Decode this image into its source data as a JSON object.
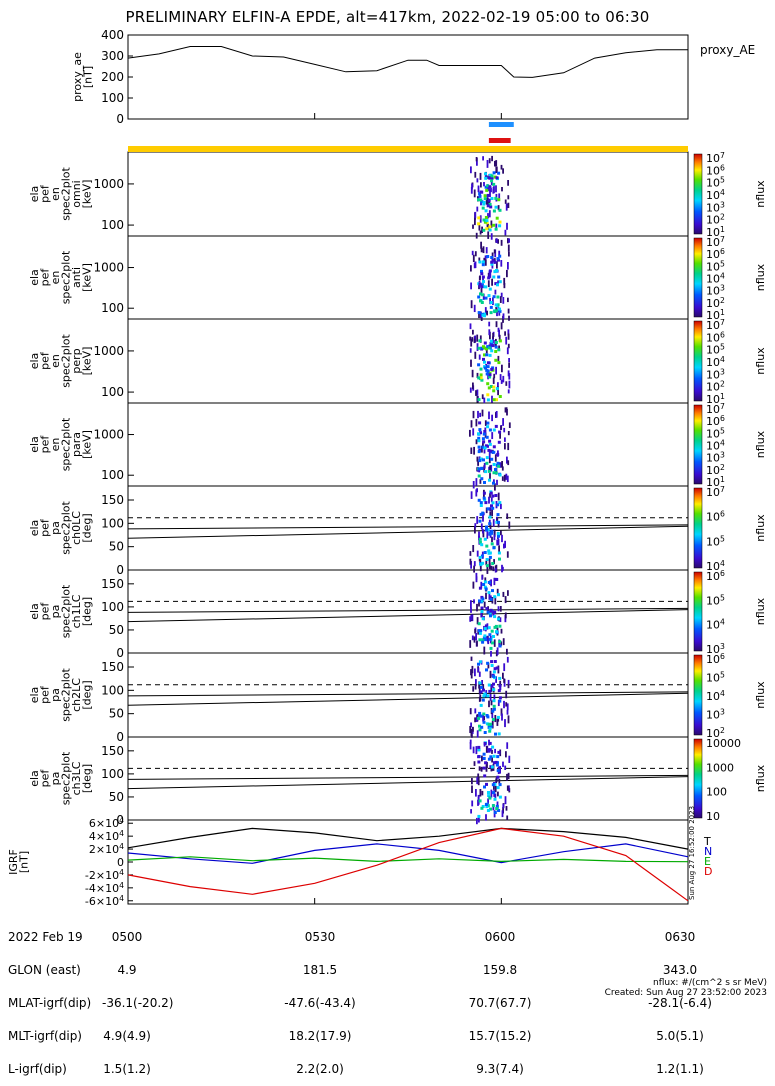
{
  "title": "PRELIMINARY ELFIN-A EPDE, alt=417km, 2022-02-19 05:00 to 06:30",
  "chart_data": [
    {
      "type": "line",
      "panel": "proxy_ae",
      "ylabel": [
        "proxy_ae",
        "[nT]"
      ],
      "yticks": [
        "400",
        "300",
        "200",
        "100",
        "0"
      ],
      "ylim": [
        0,
        400
      ],
      "legend": "proxy_AE",
      "x_minutes_after_0500": [
        0,
        5,
        10,
        15,
        20,
        25,
        30,
        35,
        40,
        45,
        48,
        50,
        55,
        60,
        62,
        65,
        70,
        75,
        80,
        85,
        90
      ],
      "values": [
        290,
        310,
        345,
        345,
        300,
        295,
        260,
        225,
        230,
        280,
        280,
        255,
        255,
        255,
        200,
        198,
        220,
        290,
        315,
        330,
        330
      ],
      "color": "#000000"
    },
    {
      "type": "heatmap",
      "panel": "omni",
      "ylabel": [
        "ela",
        "pef",
        "en",
        "spec2plot",
        "omni",
        "[keV]"
      ],
      "yticks": [
        "1000",
        "100"
      ],
      "scale": "log",
      "colorbar_label": "nflux",
      "colorbar_ticks": [
        "10^7",
        "10^6",
        "10^5",
        "10^4",
        "10^3",
        "10^2",
        "10^1"
      ]
    },
    {
      "type": "heatmap",
      "panel": "anti",
      "ylabel": [
        "ela",
        "pef",
        "en",
        "spec2plot",
        "anti",
        "[keV]"
      ],
      "yticks": [
        "1000",
        "100"
      ],
      "scale": "log",
      "colorbar_label": "nflux",
      "colorbar_ticks": [
        "10^7",
        "10^6",
        "10^5",
        "10^4",
        "10^3",
        "10^2",
        "10^1"
      ]
    },
    {
      "type": "heatmap",
      "panel": "perp",
      "ylabel": [
        "ela",
        "pef",
        "en",
        "spec2plot",
        "perp",
        "[keV]"
      ],
      "yticks": [
        "1000",
        "100"
      ],
      "scale": "log",
      "colorbar_label": "nflux",
      "colorbar_ticks": [
        "10^7",
        "10^6",
        "10^5",
        "10^4",
        "10^3",
        "10^2",
        "10^1"
      ]
    },
    {
      "type": "heatmap",
      "panel": "para",
      "ylabel": [
        "ela",
        "pef",
        "en",
        "spec2plot",
        "para",
        "[keV]"
      ],
      "yticks": [
        "1000",
        "100"
      ],
      "scale": "log",
      "colorbar_label": "nflux",
      "colorbar_ticks": [
        "10^7",
        "10^6",
        "10^5",
        "10^4",
        "10^3",
        "10^2",
        "10^1"
      ]
    },
    {
      "type": "heatmap",
      "panel": "ch0LC",
      "ylabel": [
        "ela",
        "pef",
        "pa",
        "spec2plot",
        "ch0LC",
        "[deg]"
      ],
      "yticks": [
        "150",
        "100",
        "50",
        "0"
      ],
      "ylim": [
        0,
        180
      ],
      "colorbar_label": "nflux",
      "colorbar_ticks": [
        "10^7",
        "10^6",
        "10^5",
        "10^4"
      ]
    },
    {
      "type": "heatmap",
      "panel": "ch1LC",
      "ylabel": [
        "ela",
        "pef",
        "pa",
        "spec2plot",
        "ch1LC",
        "[deg]"
      ],
      "yticks": [
        "150",
        "100",
        "50",
        "0"
      ],
      "ylim": [
        0,
        180
      ],
      "colorbar_label": "nflux",
      "colorbar_ticks": [
        "10^6",
        "10^5",
        "10^4",
        "10^3"
      ]
    },
    {
      "type": "heatmap",
      "panel": "ch2LC",
      "ylabel": [
        "ela",
        "pef",
        "pa",
        "spec2plot",
        "ch2LC",
        "[deg]"
      ],
      "yticks": [
        "150",
        "100",
        "50",
        "0"
      ],
      "ylim": [
        0,
        180
      ],
      "colorbar_label": "nflux",
      "colorbar_ticks": [
        "10^6",
        "10^5",
        "10^4",
        "10^3",
        "10^2"
      ]
    },
    {
      "type": "heatmap",
      "panel": "ch3LC",
      "ylabel": [
        "ela",
        "pef",
        "pa",
        "spec2plot",
        "ch3LC",
        "[deg]"
      ],
      "yticks": [
        "150",
        "100",
        "50",
        "0"
      ],
      "ylim": [
        0,
        180
      ],
      "colorbar_label": "nflux",
      "colorbar_ticks": [
        "10000",
        "1000",
        "100",
        "10"
      ]
    },
    {
      "type": "line",
      "panel": "IGRF",
      "ylabel": [
        "IGRF",
        "[nT]"
      ],
      "yticks": [
        "6×10^4",
        "4×10^4",
        "2×10^4",
        "0",
        "-2×10^4",
        "-4×10^4",
        "-6×10^4"
      ],
      "ylim": [
        -65000,
        65000
      ],
      "legend": [
        "T",
        "N",
        "E",
        "D"
      ],
      "x_minutes_after_0500": [
        0,
        10,
        20,
        30,
        40,
        50,
        60,
        70,
        80,
        90
      ],
      "series": [
        {
          "name": "T",
          "color": "#000000",
          "values": [
            22000,
            38000,
            52000,
            45000,
            33000,
            40000,
            52000,
            47000,
            38000,
            20000
          ]
        },
        {
          "name": "N",
          "color": "#0000cc",
          "values": [
            14000,
            5000,
            -2000,
            18000,
            28000,
            18000,
            -1000,
            16000,
            28000,
            8000
          ]
        },
        {
          "name": "E",
          "color": "#00aa00",
          "values": [
            3000,
            8000,
            2000,
            6000,
            1000,
            5000,
            1000,
            4000,
            1000,
            500
          ]
        },
        {
          "name": "D",
          "color": "#dd0000",
          "values": [
            -20000,
            -38000,
            -50000,
            -33000,
            -5000,
            30000,
            52000,
            40000,
            10000,
            -60000
          ]
        }
      ]
    }
  ],
  "xticks": [
    "0500",
    "0530",
    "0600",
    "0630"
  ],
  "footer": {
    "rows": [
      {
        "label": "2022 Feb 19",
        "v0500": "0500",
        "v0530": "0530",
        "v0600": "0600",
        "v0630": "0630"
      },
      {
        "label": "GLON (east)",
        "v0500": "4.9",
        "v0530": "181.5",
        "v0600": "159.8",
        "v0630": "343.0"
      },
      {
        "label": "MLAT-igrf(dip)",
        "v0500": "-36.1(-20.2)",
        "v0530": "-47.6(-43.4)",
        "v0600": "70.7(67.7)",
        "v0630": "-28.1(-6.4)"
      },
      {
        "label": "MLT-igrf(dip)",
        "v0500": "4.9(4.9)",
        "v0530": "18.2(17.9)",
        "v0600": "15.7(15.2)",
        "v0630": "5.0(5.1)"
      },
      {
        "label": "L-igrf(dip)",
        "v0500": "1.5(1.2)",
        "v0530": "2.2(2.0)",
        "v0600": "9.3(7.4)",
        "v0630": "1.2(1.1)"
      }
    ],
    "units_note": "nflux: #/(cm^2 s sr MeV)",
    "created": "Created: Sun Aug 27 23:52:00 2023",
    "stamp": "Sun Aug 27 16:52:00 2023"
  },
  "colors": {
    "status_bar": "#ffcc00",
    "science_bar_blue": "#1e90ff",
    "science_bar_red": "#dd1111",
    "losscone_dashed": "#000000"
  }
}
